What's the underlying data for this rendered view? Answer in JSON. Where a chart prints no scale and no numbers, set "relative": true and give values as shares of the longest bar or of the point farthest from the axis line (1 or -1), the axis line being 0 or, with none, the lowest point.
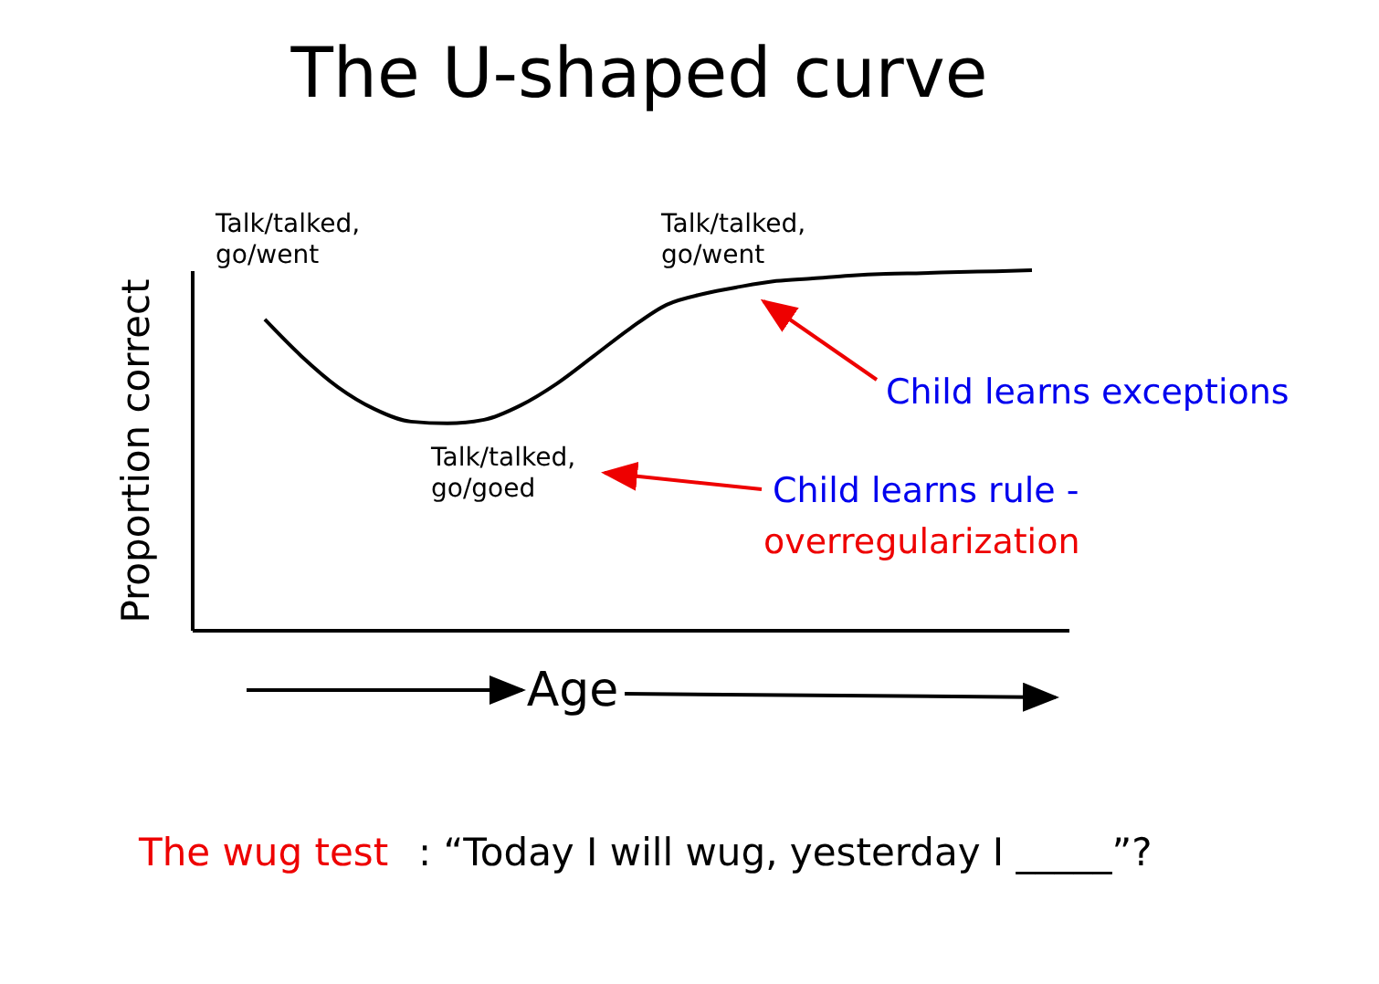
{
  "chart_data": {
    "type": "line",
    "title": "The U-shaped curve",
    "xlabel": "Age",
    "ylabel": "Proportion correct",
    "relative": true,
    "color": "#000000",
    "categories": [
      null,
      null,
      null,
      null,
      null,
      null,
      null,
      null,
      null,
      null,
      null,
      null,
      null,
      null,
      null,
      null,
      null,
      null,
      null,
      null,
      null,
      null,
      null,
      null,
      null
    ],
    "values": [
      null,
      null,
      0.863,
      0.761,
      0.675,
      0.614,
      0.579,
      0.574,
      0.584,
      0.624,
      0.685,
      0.761,
      0.838,
      0.904,
      0.934,
      0.954,
      0.97,
      0.977,
      0.985,
      0.99,
      0.992,
      0.995,
      0.997,
      1,
      null
    ],
    "annotations": [
      "Talk/talked,\ngo/went",
      "Talk/talked,\ngo/went",
      "Talk/talked,\ngo/goed",
      "Child learns exceptions",
      "Child learns rule -",
      "overregularization",
      "The wug test",
      ": “Today I will wug, yesterday I _____”?"
    ]
  }
}
